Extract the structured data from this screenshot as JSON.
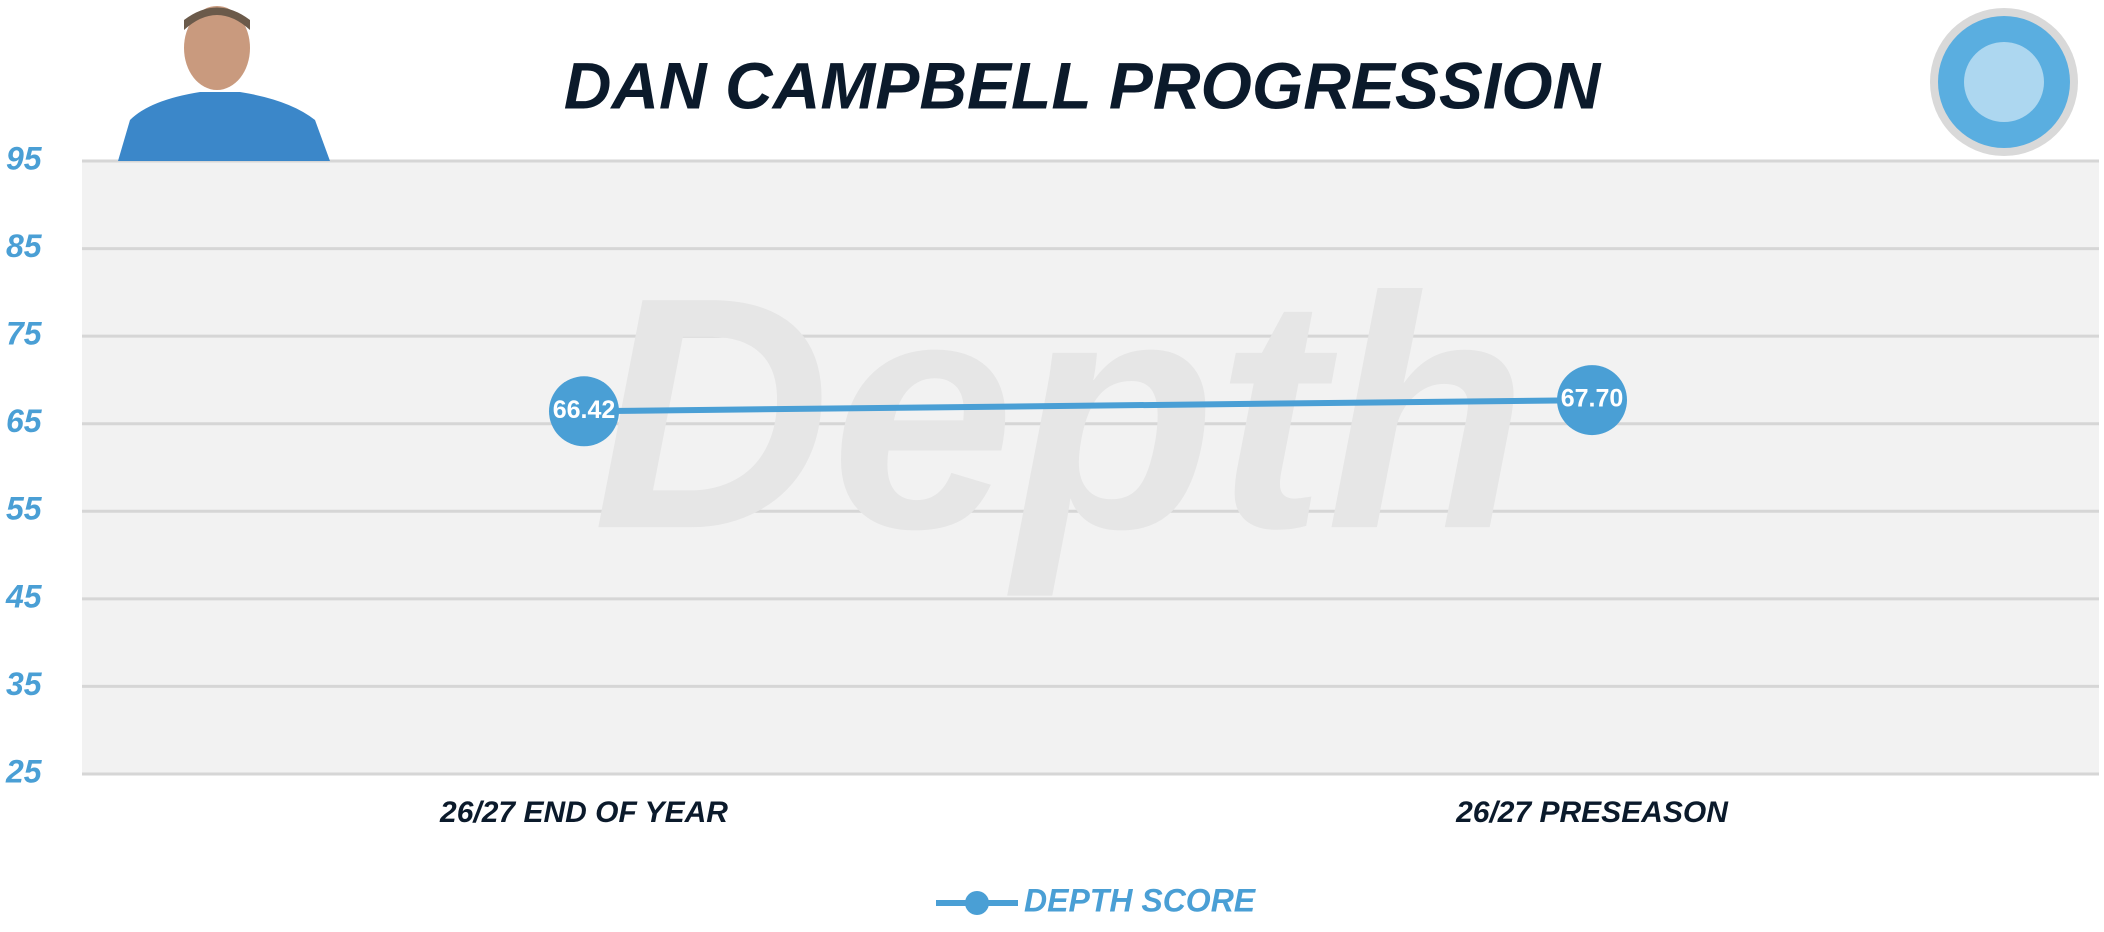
{
  "chart_data": {
    "type": "line",
    "title": "DAN CAMPBELL PROGRESSION",
    "watermark": "Depth",
    "categories": [
      "26/27 END OF YEAR",
      "26/27 PRESEASON"
    ],
    "series": [
      {
        "name": "DEPTH SCORE",
        "color": "#4a9fd5",
        "values": [
          66.42,
          67.7
        ],
        "value_labels": [
          "66.42",
          "67.70"
        ]
      }
    ],
    "ylim": [
      25,
      95
    ],
    "yticks": [
      25,
      35,
      45,
      55,
      65,
      75,
      85,
      95
    ],
    "grid": true,
    "legend": "bottom"
  }
}
